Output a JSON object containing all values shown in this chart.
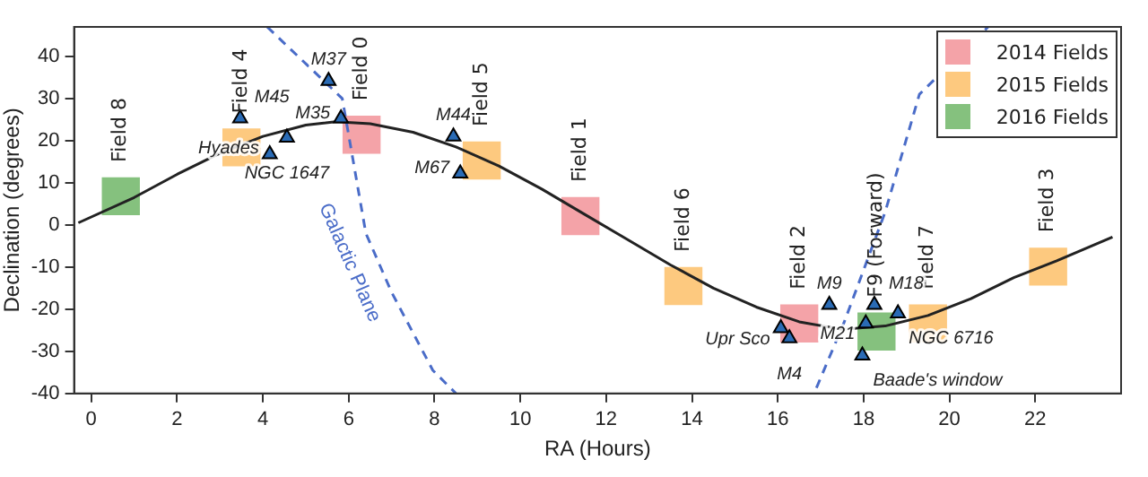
{
  "chart_data": {
    "type": "scatter",
    "xlabel": "RA (Hours)",
    "ylabel": "Declination (degrees)",
    "xlim": [
      -0.4,
      24
    ],
    "ylim": [
      -40,
      47
    ],
    "xticks": [
      0,
      2,
      4,
      6,
      8,
      10,
      12,
      14,
      16,
      18,
      20,
      22
    ],
    "yticks": [
      -40,
      -30,
      -20,
      -10,
      0,
      10,
      20,
      30,
      40
    ],
    "grid": false,
    "legend": "top right",
    "series": [
      {
        "name": "2014 Fields",
        "color": "#f4a3a8",
        "marker": "square",
        "x": [
          6.3,
          11.4,
          16.5
        ],
        "values": [
          21.4,
          2.1,
          -23.4
        ],
        "value_labels": [
          "Field 0",
          "Field 1",
          "Field 2"
        ]
      },
      {
        "name": "2015 Fields",
        "color": "#fdc97f",
        "marker": "square",
        "x": [
          22.3,
          3.5,
          9.1,
          13.8,
          19.5
        ],
        "values": [
          -9.9,
          18.4,
          15.3,
          -14.5,
          -23.4
        ],
        "value_labels": [
          "Field 3",
          "Field 4",
          "Field 5",
          "Field 6",
          "Field 7"
        ]
      },
      {
        "name": "2016 Fields",
        "color": "#85c17e",
        "marker": "square",
        "x": [
          0.69,
          18.3
        ],
        "values": [
          6.8,
          -25.3
        ],
        "value_labels": [
          "Field 8",
          "F9 (Forward)"
        ]
      },
      {
        "type": "line",
        "color": "#222222",
        "marker": "none",
        "x": [
          -0.3,
          1,
          2,
          3,
          4,
          5,
          5.7,
          6.5,
          7.5,
          8.5,
          9.5,
          10.5,
          11.5,
          12.5,
          13.5,
          14.5,
          15.5,
          16.5,
          17.5,
          18.5,
          19.5,
          20.5,
          21.5,
          22.5,
          23.8
        ],
        "values": [
          0.5,
          6.5,
          12,
          17,
          21,
          23.7,
          24.5,
          24,
          22,
          18.5,
          14,
          8.5,
          2.5,
          -3.5,
          -9.5,
          -15,
          -19.5,
          -23,
          -24.8,
          -24,
          -21.5,
          -17.5,
          -12.5,
          -8.5,
          -2.9
        ]
      },
      {
        "type": "line",
        "name": "Galactic Plane",
        "color": "#4a6cc8",
        "line_style": "dashed",
        "marker": "none",
        "x": [
          4.1,
          5.85,
          6.4,
          7.0,
          7.96,
          8.5,
          12,
          16.9,
          17.55,
          18.5,
          19.3,
          20.9
        ],
        "values": [
          47,
          30,
          -2,
          -16,
          -34.5,
          -40,
          null,
          -38.7,
          -23,
          3,
          31,
          47
        ]
      },
      {
        "color": "#2a6bb5",
        "marker": "triangle",
        "x": [
          3.47,
          4.56,
          4.16,
          5.53,
          5.82,
          8.44,
          8.6,
          17.2,
          18.25,
          18.8,
          18.05,
          16.07,
          16.27,
          17.97
        ],
        "values": [
          25.3,
          20.7,
          16.8,
          34.2,
          25.3,
          21,
          12.2,
          -19,
          -19,
          -21,
          -23.4,
          -24.5,
          -26.9,
          -31
        ],
        "value_labels": [
          "M45",
          "NGC 1647",
          "Hyades",
          "M37",
          "M35",
          "M44",
          "M67",
          "M9",
          "M18",
          "NGC 6716",
          "M21",
          "Upr Sco",
          "M4",
          "Baade's window"
        ]
      }
    ]
  }
}
